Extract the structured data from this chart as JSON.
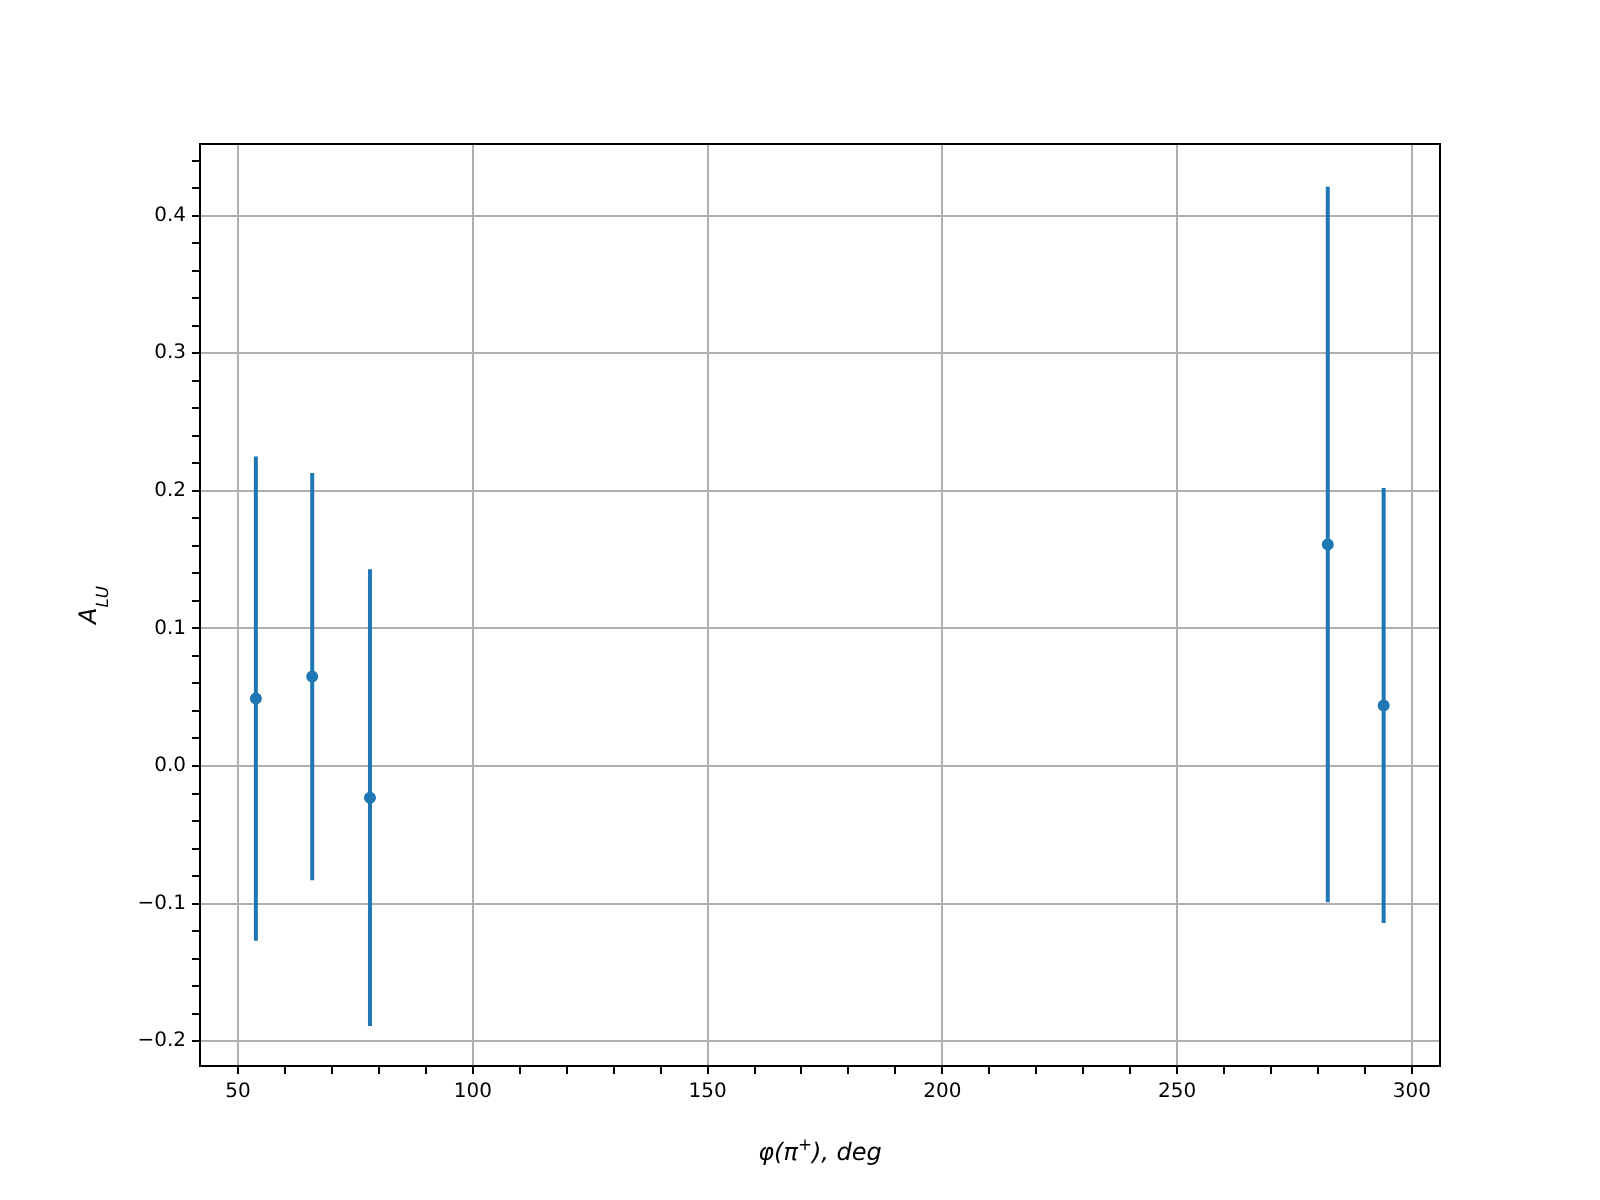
{
  "chart_data": {
    "type": "scatter",
    "xlabel": "φ(π$^{+}$), deg",
    "ylabel": "A$_{LU}$",
    "x": [
      53.8,
      65.8,
      78.1,
      282.1,
      294.0
    ],
    "series": [
      {
        "color": "#1f77b4",
        "values": [
          0.049,
          0.065,
          -0.023,
          0.161,
          0.044
        ],
        "errors": [
          0.176,
          0.148,
          0.166,
          0.26,
          0.158
        ]
      }
    ],
    "marker": "circle",
    "grid": true,
    "xlim": [
      41.9,
      306
    ],
    "xticks": [
      {
        "value": 50,
        "label": "50"
      },
      {
        "value": 60,
        "label": null
      },
      {
        "value": 70,
        "label": null
      },
      {
        "value": 80,
        "label": null
      },
      {
        "value": 90,
        "label": null
      },
      {
        "value": 100,
        "label": "100"
      },
      {
        "value": 110,
        "label": null
      },
      {
        "value": 120,
        "label": null
      },
      {
        "value": 130,
        "label": null
      },
      {
        "value": 140,
        "label": null
      },
      {
        "value": 150,
        "label": "150"
      },
      {
        "value": 160,
        "label": null
      },
      {
        "value": 170,
        "label": null
      },
      {
        "value": 180,
        "label": null
      },
      {
        "value": 190,
        "label": null
      },
      {
        "value": 200,
        "label": "200"
      },
      {
        "value": 210,
        "label": null
      },
      {
        "value": 220,
        "label": null
      },
      {
        "value": 230,
        "label": null
      },
      {
        "value": 240,
        "label": null
      },
      {
        "value": 250,
        "label": "250"
      },
      {
        "value": 260,
        "label": null
      },
      {
        "value": 270,
        "label": null
      },
      {
        "value": 280,
        "label": null
      },
      {
        "value": 290,
        "label": null
      },
      {
        "value": 300,
        "label": "300"
      }
    ],
    "ylim": [
      -0.218,
      0.452
    ],
    "yticks": [
      {
        "value": -0.2,
        "label": "−0.2"
      },
      {
        "value": -0.18,
        "label": null
      },
      {
        "value": -0.16,
        "label": null
      },
      {
        "value": -0.14,
        "label": null
      },
      {
        "value": -0.12,
        "label": null
      },
      {
        "value": -0.1,
        "label": "−0.1"
      },
      {
        "value": -0.08,
        "label": null
      },
      {
        "value": -0.06,
        "label": null
      },
      {
        "value": -0.04,
        "label": null
      },
      {
        "value": -0.02,
        "label": null
      },
      {
        "value": 0,
        "label": "0.0"
      },
      {
        "value": 0.02,
        "label": null
      },
      {
        "value": 0.04,
        "label": null
      },
      {
        "value": 0.06,
        "label": null
      },
      {
        "value": 0.08,
        "label": null
      },
      {
        "value": 0.1,
        "label": "0.1"
      },
      {
        "value": 0.12,
        "label": null
      },
      {
        "value": 0.14,
        "label": null
      },
      {
        "value": 0.16,
        "label": null
      },
      {
        "value": 0.18,
        "label": null
      },
      {
        "value": 0.2,
        "label": "0.2"
      },
      {
        "value": 0.22,
        "label": null
      },
      {
        "value": 0.24,
        "label": null
      },
      {
        "value": 0.26,
        "label": null
      },
      {
        "value": 0.28,
        "label": null
      },
      {
        "value": 0.3,
        "label": "0.3"
      },
      {
        "value": 0.32,
        "label": null
      },
      {
        "value": 0.34,
        "label": null
      },
      {
        "value": 0.36,
        "label": null
      },
      {
        "value": 0.38,
        "label": null
      },
      {
        "value": 0.4,
        "label": "0.4"
      },
      {
        "value": 0.42,
        "label": null
      },
      {
        "value": 0.44,
        "label": null
      }
    ]
  }
}
